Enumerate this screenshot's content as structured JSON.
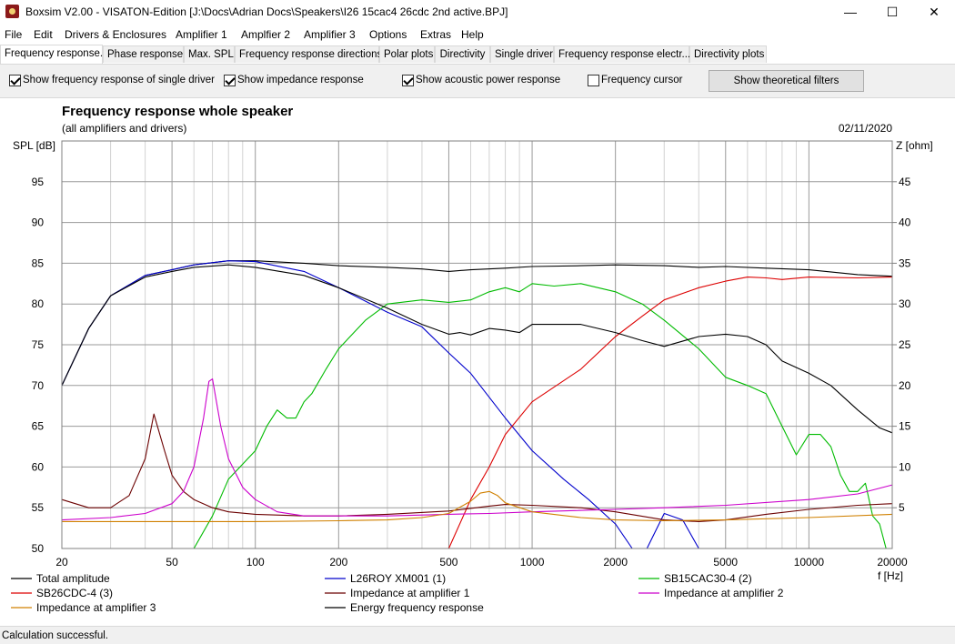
{
  "window": {
    "title": "Boxsim V2.00 - VISATON-Edition [J:\\Docs\\Adrian Docs\\Speakers\\I26 15cac4 26cdc 2nd active.BPJ]",
    "minimize": "—",
    "maximize": "☐",
    "close": "✕"
  },
  "menu": [
    "File",
    "Edit",
    "Drivers & Enclosures",
    "Amplifier 1",
    "Amplfier 2",
    "Amplifier 3",
    "Options",
    "Extras",
    "Help"
  ],
  "tabs": [
    "Frequency response.",
    "Phase response",
    "Max. SPL",
    "Frequency response directions",
    "Polar plots",
    "Directivity",
    "Single driver",
    "Frequency response electr...",
    "Directivity plots"
  ],
  "active_tab": 0,
  "toolbar": {
    "cb_single_driver": "Show frequency response of single driver",
    "cb_impedance": "Show impedance response",
    "cb_power": "Show acoustic power response",
    "cb_cursor": "Frequency cursor",
    "btn_filters": "Show theoretical filters"
  },
  "status": "Calculation successful.",
  "chart_data": {
    "type": "line",
    "title": "Frequency response whole speaker",
    "subtitle": "(all amplifiers and drivers)",
    "date": "02/11/2020",
    "ylabel": "SPL [dB]",
    "y2label": "Z [ohm]",
    "xlabel": "f [Hz]",
    "xscale": "log",
    "xlim": [
      20,
      20000
    ],
    "ylim": [
      50,
      100
    ],
    "y2lim": [
      0,
      50
    ],
    "x_ticks": [
      20,
      50,
      100,
      200,
      500,
      1000,
      2000,
      5000,
      10000,
      20000
    ],
    "x_tick_labels": [
      "20",
      "50",
      "100",
      "200",
      "500",
      "1000",
      "2000",
      "5000",
      "10000",
      "20000"
    ],
    "y_ticks": [
      50,
      55,
      60,
      65,
      70,
      75,
      80,
      85,
      90,
      95
    ],
    "y2_ticks": [
      5,
      10,
      15,
      20,
      25,
      30,
      35,
      40,
      45
    ],
    "grid": true,
    "legend_position": "bottom",
    "series": [
      {
        "name": "Total amplitude",
        "color": "#000000",
        "axis": "left",
        "x": [
          20,
          25,
          30,
          40,
          50,
          60,
          80,
          100,
          150,
          200,
          300,
          400,
          500,
          600,
          800,
          1000,
          1500,
          2000,
          3000,
          4000,
          5000,
          7000,
          10000,
          15000,
          20000
        ],
        "y": [
          70,
          77,
          81,
          83.5,
          84.2,
          84.8,
          85.3,
          85.3,
          85,
          84.7,
          84.5,
          84.3,
          84,
          84.2,
          84.4,
          84.6,
          84.7,
          84.8,
          84.7,
          84.5,
          84.6,
          84.4,
          84.2,
          83.6,
          83.4
        ]
      },
      {
        "name": "L26ROY XM001 (1)",
        "color": "#0000cc",
        "axis": "left",
        "x": [
          20,
          25,
          30,
          40,
          50,
          60,
          80,
          100,
          150,
          200,
          300,
          400,
          500,
          600,
          800,
          1000,
          1300,
          1600,
          2000,
          2300,
          2600,
          3000,
          3500,
          4000
        ],
        "y": [
          70,
          77,
          81,
          83.5,
          84.2,
          84.8,
          85.3,
          85.2,
          84,
          82,
          79,
          77.2,
          74,
          71.5,
          66,
          62,
          58.5,
          56,
          53,
          50,
          50,
          54.3,
          53.5,
          50
        ]
      },
      {
        "name": "SB15CAC30-4 (2)",
        "color": "#00bb00",
        "axis": "left",
        "x": [
          20,
          40,
          60,
          70,
          80,
          100,
          110,
          120,
          130,
          140,
          150,
          160,
          180,
          200,
          250,
          300,
          400,
          500,
          600,
          700,
          800,
          900,
          1000,
          1200,
          1500,
          2000,
          2500,
          3000,
          4000,
          5000,
          6000,
          7000,
          8000,
          9000,
          10000,
          11000,
          12000,
          13000,
          14000,
          15000,
          16000,
          17000,
          18000,
          19000,
          20000
        ],
        "y": [
          50,
          50,
          50,
          54,
          58.5,
          62,
          65,
          67,
          66,
          66,
          68,
          69,
          72,
          74.5,
          78,
          80,
          80.5,
          80.2,
          80.5,
          81.5,
          82,
          81.5,
          82.5,
          82.2,
          82.5,
          81.5,
          80,
          78,
          74.5,
          71,
          70,
          69,
          65,
          61.5,
          64,
          64,
          62.5,
          59,
          57,
          57,
          58,
          54,
          53,
          50,
          50
        ]
      },
      {
        "name": "SB26CDC-4 (3)",
        "color": "#dd0000",
        "axis": "left",
        "x": [
          20,
          400,
          500,
          600,
          700,
          800,
          1000,
          1500,
          2000,
          2500,
          3000,
          4000,
          5000,
          6000,
          7000,
          8000,
          10000,
          15000,
          20000
        ],
        "y": [
          50,
          50,
          50,
          56,
          60,
          64,
          68,
          72,
          76,
          78.5,
          80.5,
          82,
          82.8,
          83.3,
          83.2,
          83,
          83.3,
          83.2,
          83.3
        ]
      },
      {
        "name": "Impedance at amplifier 1",
        "color": "#6b0000",
        "axis": "right",
        "x": [
          20,
          25,
          30,
          35,
          40,
          43,
          47,
          50,
          55,
          60,
          70,
          80,
          100,
          150,
          200,
          300,
          500,
          700,
          800,
          1000,
          1500,
          2000,
          3000,
          4000,
          5000,
          7000,
          10000,
          15000,
          20000
        ],
        "y": [
          6,
          5,
          5,
          6.5,
          11,
          16.5,
          12,
          9,
          7,
          6,
          5,
          4.5,
          4.2,
          4,
          4,
          4.2,
          4.6,
          5.2,
          5.4,
          5.3,
          5,
          4.5,
          3.5,
          3.3,
          3.5,
          4.2,
          4.8,
          5.3,
          5.5
        ]
      },
      {
        "name": "Impedance at amplifier 2",
        "color": "#cc00cc",
        "axis": "right",
        "x": [
          20,
          30,
          40,
          50,
          55,
          60,
          65,
          68,
          70,
          75,
          80,
          90,
          100,
          120,
          150,
          200,
          300,
          500,
          700,
          1000,
          2000,
          3000,
          5000,
          10000,
          15000,
          20000
        ],
        "y": [
          3.5,
          3.8,
          4.3,
          5.5,
          7,
          10,
          16,
          20.5,
          20.8,
          15,
          11,
          7.5,
          6,
          4.5,
          4,
          4,
          4,
          4.2,
          4.3,
          4.5,
          4.8,
          5,
          5.3,
          6,
          6.7,
          7.8
        ]
      },
      {
        "name": "Impedance at amplifier 3",
        "color": "#d08000",
        "axis": "right",
        "x": [
          20,
          100,
          200,
          300,
          400,
          500,
          600,
          650,
          700,
          750,
          800,
          1000,
          1500,
          2000,
          3000,
          5000,
          10000,
          20000
        ],
        "y": [
          3.3,
          3.3,
          3.4,
          3.5,
          3.8,
          4.3,
          5.8,
          6.8,
          7,
          6.5,
          5.6,
          4.5,
          3.8,
          3.5,
          3.4,
          3.5,
          3.8,
          4.2
        ]
      },
      {
        "name": "Energy frequency response",
        "color": "#000000",
        "axis": "left",
        "x": [
          20,
          25,
          30,
          40,
          50,
          60,
          80,
          100,
          150,
          200,
          300,
          400,
          500,
          550,
          600,
          700,
          800,
          900,
          1000,
          1500,
          2000,
          2500,
          3000,
          4000,
          5000,
          6000,
          7000,
          8000,
          10000,
          12000,
          15000,
          18000,
          20000
        ],
        "y": [
          70,
          77,
          81,
          83.3,
          84,
          84.5,
          84.8,
          84.5,
          83.5,
          82,
          79.5,
          77.5,
          76.3,
          76.5,
          76.2,
          77,
          76.8,
          76.5,
          77.5,
          77.5,
          76.5,
          75.5,
          74.8,
          76,
          76.3,
          76,
          75,
          73,
          71.5,
          70,
          67,
          64.8,
          64.2
        ]
      }
    ]
  }
}
